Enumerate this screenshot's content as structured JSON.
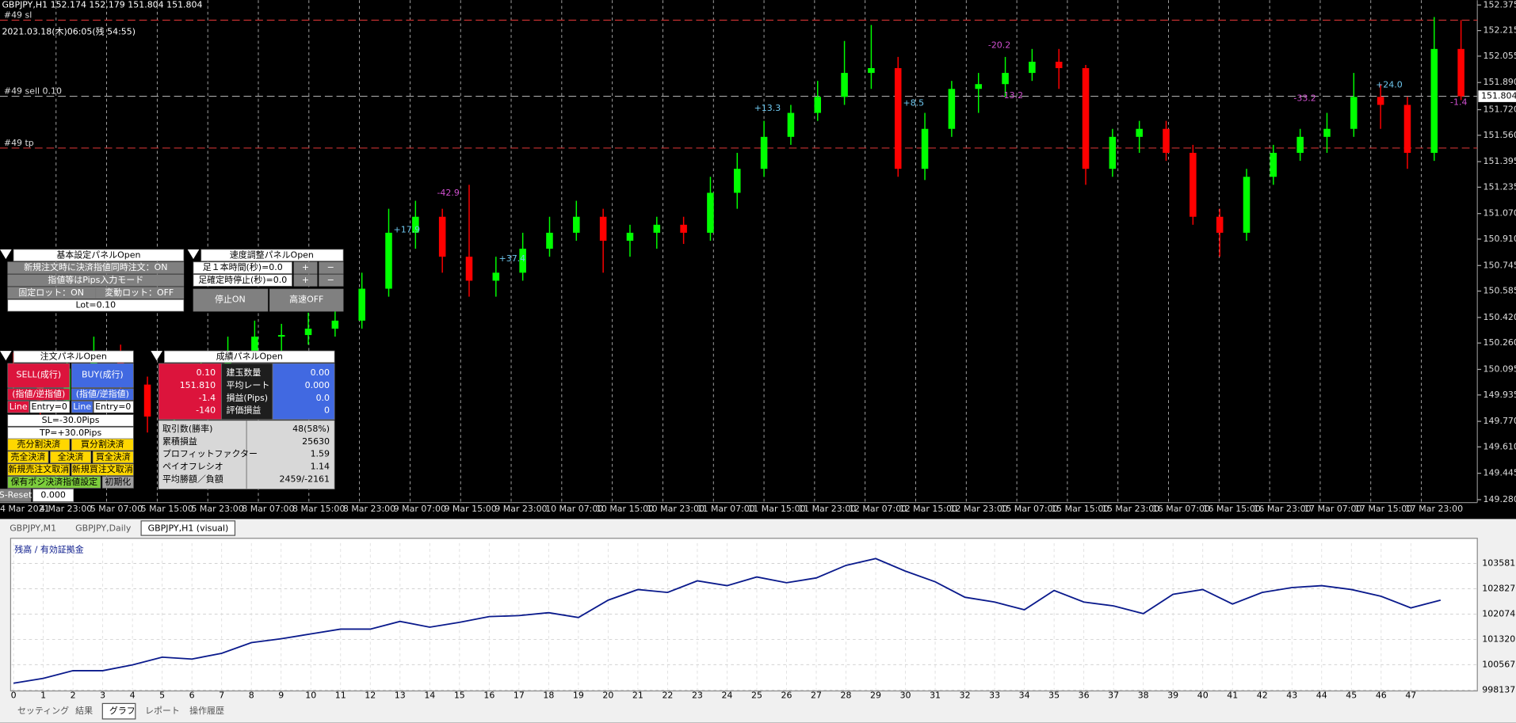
{
  "header": {
    "symbol_line": "GBPJPY,H1  152.174 152.179 151.804 151.804",
    "clock": "2021.03.18(木)06:05(残 54:55)"
  },
  "chart_data": [
    {
      "type": "candlestick",
      "ylim": [
        149.28,
        152.375
      ],
      "yticks": [
        152.375,
        152.215,
        152.055,
        {
          "value": 151.89,
          "label": "151.890"
        },
        {
          "value": 151.72,
          "label": "151.720"
        },
        {
          "value": 151.56,
          "label": "151.560"
        },
        151.395,
        151.235,
        {
          "value": 151.07,
          "label": "151.070"
        },
        {
          "value": 150.91,
          "label": "150.910"
        },
        150.745,
        150.585,
        {
          "value": 150.42,
          "label": "150.420"
        },
        {
          "value": 150.26,
          "label": "150.260"
        },
        150.095,
        149.935,
        {
          "value": 149.77,
          "label": "149.770"
        },
        {
          "value": 149.61,
          "label": "149.610"
        },
        149.445,
        {
          "value": 149.28,
          "label": "149.280"
        }
      ],
      "x_labels": [
        "4 Mar 2021",
        "4 Mar 23:00",
        "5 Mar 07:00",
        "5 Mar 15:00",
        "5 Mar 23:00",
        "8 Mar 07:00",
        "8 Mar 15:00",
        "8 Mar 23:00",
        "9 Mar 07:00",
        "9 Mar 15:00",
        "9 Mar 23:00",
        "10 Mar 07:00",
        "10 Mar 15:00",
        "10 Mar 23:00",
        "11 Mar 07:00",
        "11 Mar 15:00",
        "11 Mar 23:00",
        "12 Mar 07:00",
        "12 Mar 15:00",
        "12 Mar 23:00",
        "15 Mar 07:00",
        "15 Mar 15:00",
        "15 Mar 23:00",
        "16 Mar 07:00",
        "16 Mar 15:00",
        "16 Mar 23:00",
        "17 Mar 07:00",
        "17 Mar 15:00",
        "17 Mar 23:00"
      ],
      "up_color": "#00ff00",
      "down_color": "#ff0000",
      "candles": [
        [
          150.1,
          150.2,
          149.95,
          150.0
        ],
        [
          150.0,
          150.05,
          149.8,
          149.9
        ],
        [
          149.9,
          150.15,
          149.85,
          150.1
        ],
        [
          150.1,
          150.3,
          150.05,
          150.2
        ],
        [
          150.2,
          150.25,
          149.95,
          150.0
        ],
        [
          150.0,
          150.05,
          149.7,
          149.8
        ],
        [
          149.8,
          149.95,
          149.75,
          149.9
        ],
        [
          149.9,
          150.15,
          149.85,
          150.1
        ],
        [
          150.1,
          150.3,
          150.05,
          150.2
        ],
        [
          150.2,
          150.4,
          150.15,
          150.3
        ],
        [
          150.3,
          150.38,
          150.2,
          150.31
        ],
        [
          150.31,
          150.45,
          150.25,
          150.35
        ],
        [
          150.35,
          150.5,
          150.3,
          150.4
        ],
        [
          150.4,
          150.7,
          150.35,
          150.6
        ],
        [
          150.6,
          151.1,
          150.55,
          150.95
        ],
        [
          150.95,
          151.15,
          150.85,
          151.05
        ],
        [
          151.05,
          151.1,
          150.7,
          150.8
        ],
        [
          150.8,
          151.25,
          150.55,
          150.65
        ],
        [
          150.65,
          150.8,
          150.55,
          150.7
        ],
        [
          150.7,
          150.95,
          150.65,
          150.85
        ],
        [
          150.85,
          151.05,
          150.8,
          150.95
        ],
        [
          150.95,
          151.15,
          150.9,
          151.05
        ],
        [
          151.05,
          151.1,
          150.7,
          150.9
        ],
        [
          150.9,
          151.0,
          150.8,
          150.95
        ],
        [
          150.95,
          151.05,
          150.85,
          151.0
        ],
        [
          151.0,
          151.05,
          150.88,
          150.95
        ],
        [
          150.95,
          151.3,
          150.9,
          151.2
        ],
        [
          151.2,
          151.45,
          151.1,
          151.35
        ],
        [
          151.35,
          151.65,
          151.3,
          151.55
        ],
        [
          151.55,
          151.75,
          151.5,
          151.7
        ],
        [
          151.7,
          151.9,
          151.65,
          151.8
        ],
        [
          151.8,
          152.15,
          151.75,
          151.95
        ],
        [
          151.95,
          152.25,
          151.85,
          151.98
        ],
        [
          151.98,
          152.05,
          151.3,
          151.35
        ],
        [
          151.35,
          151.7,
          151.28,
          151.6
        ],
        [
          151.6,
          151.9,
          151.55,
          151.85
        ],
        [
          151.85,
          151.95,
          151.7,
          151.88
        ],
        [
          151.88,
          152.05,
          151.8,
          151.95
        ],
        [
          151.95,
          152.1,
          151.9,
          152.02
        ],
        [
          152.02,
          152.1,
          151.85,
          151.98
        ],
        [
          151.98,
          152.0,
          151.25,
          151.35
        ],
        [
          151.35,
          151.6,
          151.3,
          151.55
        ],
        [
          151.55,
          151.65,
          151.45,
          151.6
        ],
        [
          151.6,
          151.65,
          151.4,
          151.45
        ],
        [
          151.45,
          151.5,
          151.0,
          151.05
        ],
        [
          151.05,
          151.1,
          150.8,
          150.95
        ],
        [
          150.95,
          151.35,
          150.9,
          151.3
        ],
        [
          151.3,
          151.5,
          151.25,
          151.45
        ],
        [
          151.45,
          151.6,
          151.4,
          151.55
        ],
        [
          151.55,
          151.7,
          151.45,
          151.6
        ],
        [
          151.6,
          151.95,
          151.55,
          151.8
        ],
        [
          151.8,
          151.88,
          151.6,
          151.75
        ],
        [
          151.75,
          151.8,
          151.35,
          151.45
        ],
        [
          151.45,
          152.3,
          151.4,
          152.1
        ],
        [
          152.1,
          152.28,
          151.78,
          151.804
        ]
      ],
      "levels": [
        {
          "name": "#49 sl",
          "value": 152.28,
          "color": "#c83232"
        },
        {
          "name": "#49 sell 0.10",
          "value": 151.804,
          "color": "#a8a8a8"
        },
        {
          "name": "#49 tp",
          "value": 151.48,
          "color": "#c83232"
        }
      ],
      "trade_labels": [
        {
          "text": "+17.9",
          "color": "#6fc8f0"
        },
        {
          "text": "-42.9",
          "color": "#d050d0"
        },
        {
          "text": "+37.4",
          "color": "#6fc8f0"
        },
        {
          "text": "+13.3",
          "color": "#6fc8f0"
        },
        {
          "text": "+8.5",
          "color": "#6fc8f0"
        },
        {
          "text": "-20.2",
          "color": "#d050d0"
        },
        {
          "text": "-13.2",
          "color": "#d050d0"
        },
        {
          "text": "-33.2",
          "color": "#d050d0"
        },
        {
          "text": "+24.0",
          "color": "#6fc8f0"
        },
        {
          "text": "-1.4",
          "color": "#d050d0"
        }
      ]
    },
    {
      "type": "line",
      "legend": "残高 / 有効証拠金",
      "color": "#0a1a8c",
      "categories": [
        0,
        1,
        2,
        3,
        4,
        5,
        6,
        7,
        8,
        9,
        10,
        11,
        12,
        13,
        14,
        15,
        16,
        17,
        18,
        19,
        20,
        21,
        22,
        23,
        24,
        25,
        26,
        27,
        28,
        29,
        30,
        31,
        32,
        33,
        34,
        35,
        36,
        37,
        38,
        39,
        40,
        41,
        42,
        43,
        44,
        45,
        46,
        47,
        null
      ],
      "values": [
        1000150,
        1001600,
        1003890,
        1003890,
        1005610,
        1007900,
        1007340,
        1009060,
        1012230,
        1013380,
        1014820,
        1016250,
        1016250,
        1018550,
        1016830,
        1018270,
        1019990,
        1020280,
        1021140,
        1019700,
        1024880,
        1028040,
        1027180,
        1030630,
        1029190,
        1031780,
        1030060,
        1031490,
        1035230,
        1037250,
        1033510,
        1030340,
        1025740,
        1024310,
        1022010,
        1027760,
        1024310,
        1023160,
        1020860,
        1026610,
        1028040,
        1023730,
        1027180,
        1028620,
        1029190,
        1028040,
        1026030,
        1022580,
        1024880
      ],
      "ylim": [
        998137,
        1041850
      ],
      "yticks": [
        998137,
        1005672,
        1013207,
        1020741,
        1028276,
        1035811
      ],
      "grid": true
    }
  ],
  "panels": {
    "basic": {
      "title": "基本設定パネルOpen",
      "row1": "新規注文時に決済指値同時注文：ON",
      "row2": "指値等はPips入力モード",
      "fixed_lot": "固定ロット：ON",
      "var_lot": "変動ロット：OFF",
      "lot": "Lot=0.10"
    },
    "speed": {
      "title": "速度調整パネルOpen",
      "bar_time": "足１本時間(秒)=0.0",
      "confirm_stop": "足確定時停止(秒)=0.0",
      "plus": "+",
      "minus": "−",
      "stop": "停止ON",
      "fast": "高速OFF"
    },
    "order": {
      "title": "注文パネルOpen",
      "sell": "SELL(成行)",
      "buy": "BUY(成行)",
      "limit": "(指値/逆指値)",
      "line": "Line",
      "entry": "Entry=0",
      "sl": "SL=-30.0Pips",
      "tp": "TP=+30.0Pips",
      "sell_split": "売分割決済",
      "buy_split": "買分割決済",
      "sell_all": "売全決済",
      "all": "全決済",
      "buy_all": "買全決済",
      "cancel_sell": "新規売注文取消",
      "cancel_buy": "新規買注文取消",
      "pos_limit": "保有ポジ決済指値設定",
      "init": "初期化"
    },
    "results": {
      "title": "成績パネルOpen",
      "sell_values": [
        "0.10",
        "151.810",
        "-1.4",
        "-140"
      ],
      "labels": [
        "建玉数量",
        "平均レート",
        "損益(Pips)",
        "評価損益"
      ],
      "buy_values": [
        "0.00",
        "0.000",
        "0.0",
        "0"
      ],
      "stats": [
        [
          "取引数(勝率)",
          "48(58%)"
        ],
        [
          "累積損益",
          "25630"
        ],
        [
          "プロフィットファクター",
          "1.59"
        ],
        [
          "ペイオフレシオ",
          "1.14"
        ],
        [
          "平均勝額／負額",
          "2459/-2161"
        ]
      ]
    },
    "s_reset": "S-Reset",
    "s_value": "0.000"
  },
  "tabs": [
    "GBPJPY,M1",
    "GBPJPY,Daily",
    "GBPJPY,H1 (visual)"
  ],
  "bottom_tabs": [
    "セッティング",
    "結果",
    "グラフ",
    "レポート",
    "操作履歴"
  ]
}
